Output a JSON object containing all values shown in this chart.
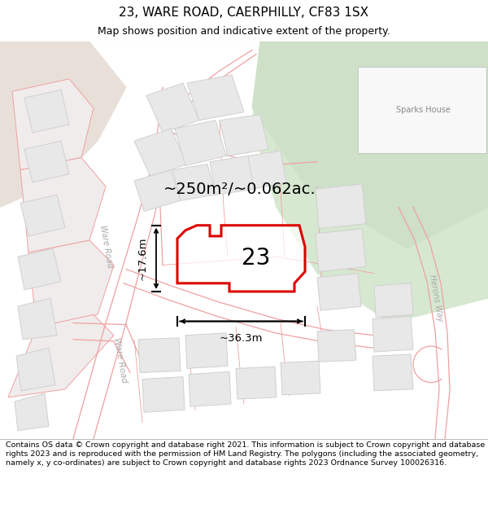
{
  "title": "23, WARE ROAD, CAERPHILLY, CF83 1SX",
  "subtitle": "Map shows position and indicative extent of the property.",
  "footer": "Contains OS data © Crown copyright and database right 2021. This information is subject to Crown copyright and database rights 2023 and is reproduced with the permission of HM Land Registry. The polygons (including the associated geometry, namely x, y co-ordinates) are subject to Crown copyright and database rights 2023 Ordnance Survey 100026316.",
  "area_label": "~250m²/~0.062ac.",
  "number_label": "23",
  "width_label": "~36.3m",
  "height_label": "~17.6m",
  "bg_color": "#f8f4f0",
  "map_bg": "#ffffff",
  "road_color": "#f0a0a0",
  "building_color": "#e8e8e8",
  "building_edge": "#d0d0d0",
  "green_area_color": "#d6e8d0",
  "green_area2_color": "#e8ede8",
  "beige_area_color": "#e8e0d8",
  "highlight_color": "#dd0000",
  "title_fontsize": 11,
  "subtitle_fontsize": 9,
  "footer_fontsize": 6.8
}
